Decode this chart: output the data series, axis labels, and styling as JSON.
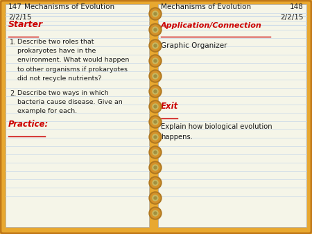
{
  "bg_color": "#e8a830",
  "page_color": "#f5f5e8",
  "line_color": "#c8d8e8",
  "red_color": "#cc0000",
  "black_color": "#1a1a1a",
  "ring_color": "#d4922a",
  "ring_shadow": "#b07820",
  "left_page_num": "147",
  "right_page_num": "148",
  "subject": "Mechanisms of Evolution",
  "date": "2/2/15",
  "starter_label": "Starter",
  "item1": "Describe two roles that\nprokaryotes have in the\nenvironment. What would happen\nto other organisms if prokaryotes\ndid not recycle nutrients?",
  "item2": "Describe two ways in which\nbacteria cause disease. Give an\nexample for each.",
  "practice_label": "Practice:",
  "app_label": "Application/Connection",
  "graphic_organizer": "Graphic Organizer",
  "exit_label": "Exit",
  "exit_text": "Explain how biological evolution\nhappens."
}
